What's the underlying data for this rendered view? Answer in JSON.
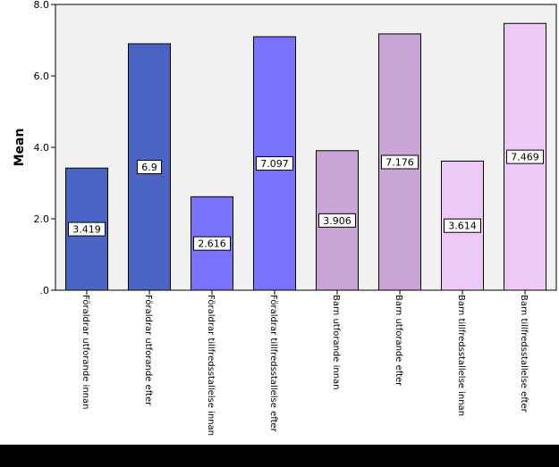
{
  "chart_data": {
    "type": "bar",
    "title": "",
    "xlabel": "",
    "ylabel": "Mean",
    "ylim": [
      0,
      8
    ],
    "yticks": [
      0,
      2,
      4,
      6,
      8
    ],
    "ytick_labels": [
      ".0",
      "2.0",
      "4.0",
      "6.0",
      "8.0"
    ],
    "grid": false,
    "categories": [
      "Föraldrar utforande innan",
      "Föraldrar utforande efter",
      "Föraldrar tillfredsstallelse innan",
      "Föraldrar tillfredsstallelse efter",
      "Barn utforande innan",
      "Barn utforande efter",
      "Barn tillfredsstallelse innan",
      "Barn tillfredsstallelse efter"
    ],
    "values": [
      3.419,
      6.9,
      2.616,
      7.097,
      3.906,
      7.176,
      3.614,
      7.469
    ],
    "value_labels": [
      "3.419",
      "6.9",
      "2.616",
      "7.097",
      "3.906",
      "7.176",
      "3.614",
      "7.469"
    ],
    "colors": [
      "#4a64c4",
      "#4a64c4",
      "#7a72fb",
      "#7a72fb",
      "#c9a4d7",
      "#c9a4d7",
      "#eccaf5",
      "#eccaf5"
    ],
    "plot_background": "#f1f1f1"
  }
}
